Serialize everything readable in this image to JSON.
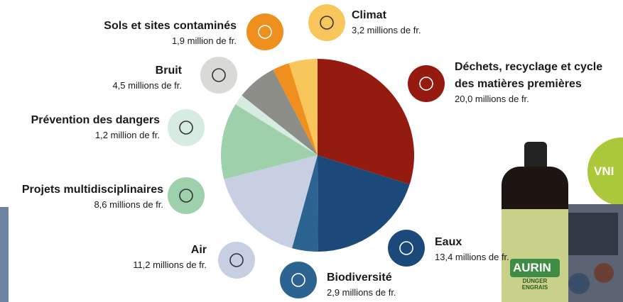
{
  "chart_data": {
    "type": "pie",
    "categories": [
      "Déchets, recyclage et cycle des matières premières",
      "Eaux",
      "Biodiversité",
      "Air",
      "Projets multidisciplinaires",
      "Prévention des dangers",
      "Bruit",
      "Sols et sites contaminés",
      "Climat"
    ],
    "values": [
      20.0,
      13.4,
      2.9,
      11.2,
      8.6,
      1.2,
      4.5,
      1.9,
      3.2
    ],
    "value_labels": [
      "20,0 millions de fr.",
      "13,4 millions de fr.",
      "2,9 millions de fr.",
      "11,2 millions de fr.",
      "8,6 millions de fr.",
      "1,2 million de fr.",
      "4,5 millions de fr.",
      "1,9 million de fr.",
      "3,2 millions de fr."
    ],
    "colors": [
      "#951a10",
      "#1b4a7a",
      "#2c6391",
      "#c7cfe2",
      "#9ed1ab",
      "#d6ece0",
      "#8e8e88",
      "#ee8f1e",
      "#f9c65b"
    ]
  },
  "photo": {
    "brand": "AURIN",
    "product": "DÜNGER ENGRAIS",
    "logo": "VNI"
  }
}
